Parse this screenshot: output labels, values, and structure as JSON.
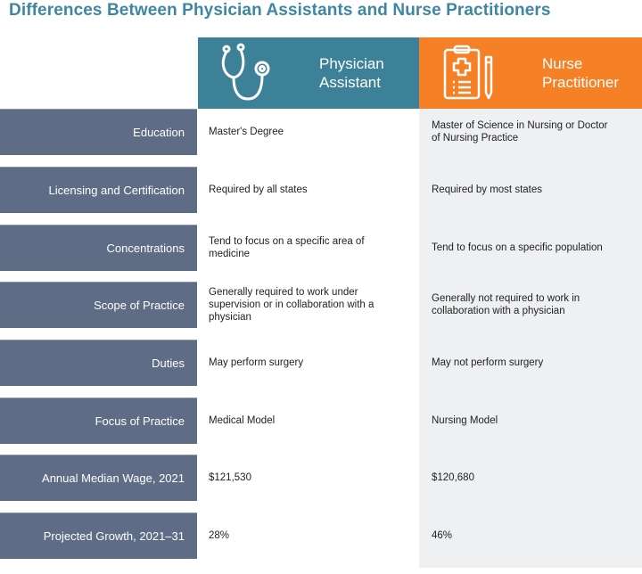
{
  "title": "Differences Between Physician Assistants and Nurse Practitioners",
  "colors": {
    "title": "#3f86a3",
    "physician_assistant": "#3d8199",
    "nurse_practitioner": "#f58025",
    "row_label": "#5e6d85"
  },
  "columns": [
    {
      "label": "Physician Assistant",
      "icon": "stethoscope-icon"
    },
    {
      "label": "Nurse Practitioner",
      "icon": "clipboard-medical-icon"
    }
  ],
  "rows": [
    {
      "label": "Education",
      "pa": "Master's Degree",
      "np": "Master of Science in Nursing or Doctor of Nursing Practice"
    },
    {
      "label": "Licensing and Certification",
      "pa": "Required by all states",
      "np": "Required by most states"
    },
    {
      "label": "Concentrations",
      "pa": "Tend to focus on a specific area of medicine",
      "np": "Tend to focus on a specific population"
    },
    {
      "label": "Scope of Practice",
      "pa": "Generally required to work under supervision or in collaboration with a physician",
      "np": "Generally not required to work in collaboration with a physician"
    },
    {
      "label": "Duties",
      "pa": "May perform surgery",
      "np": "May not perform surgery"
    },
    {
      "label": "Focus of Practice",
      "pa": "Medical Model",
      "np": "Nursing Model"
    },
    {
      "label": "Annual Median Wage, 2021",
      "pa": "$121,530",
      "np": "$120,680"
    },
    {
      "label": "Projected Growth, 2021–31",
      "pa": "28%",
      "np": "46%"
    }
  ]
}
